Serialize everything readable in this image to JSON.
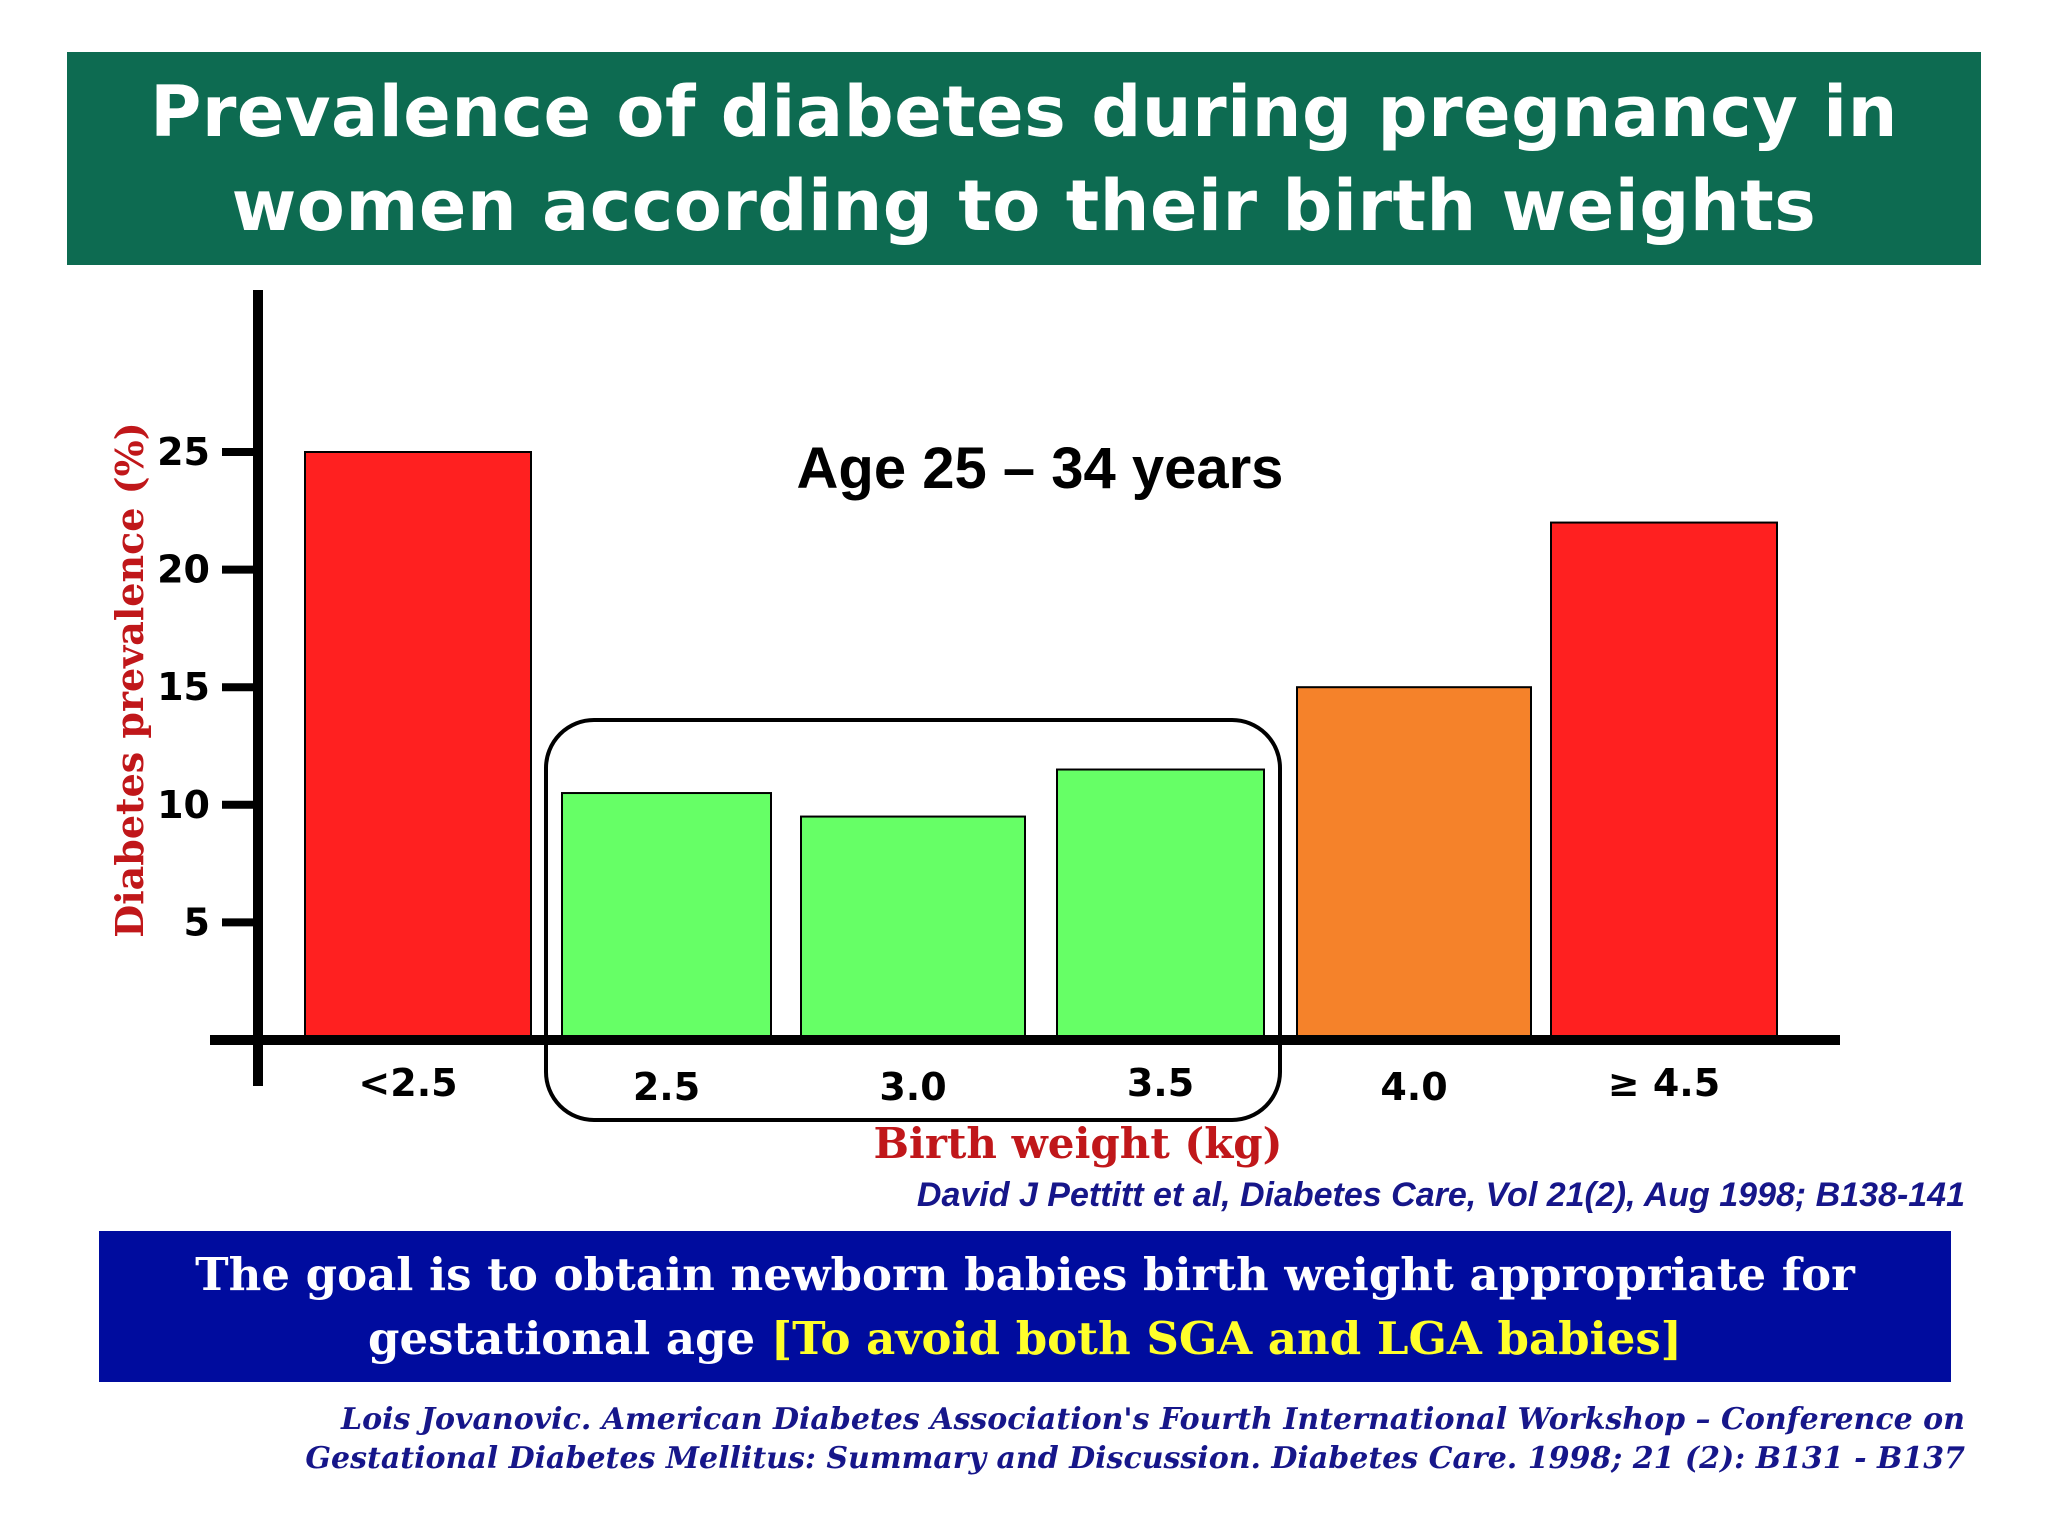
{
  "header": {
    "title_line1": "Prevalence of diabetes during pregnancy in",
    "title_line2": "women according to their birth weights",
    "background": "#0d6b51"
  },
  "chart_data": {
    "type": "bar",
    "subtitle": "Age 25 – 34 years",
    "xlabel": "Birth weight (kg)",
    "ylabel": "Diabetes prevalence (%)",
    "categories": [
      "<2.5",
      "2.5",
      "3.0",
      "3.5",
      "4.0",
      "≥ 4.5"
    ],
    "values": [
      25,
      10.5,
      9.5,
      11.5,
      15,
      22
    ],
    "colors": [
      "#ff2020",
      "#66ff66",
      "#66ff66",
      "#66ff66",
      "#f5822a",
      "#ff2020"
    ],
    "yticks": [
      5,
      10,
      15,
      20,
      25
    ],
    "ylim": [
      0,
      25
    ],
    "grid": false,
    "highlight_group": [
      "2.5",
      "3.0",
      "3.5"
    ]
  },
  "citation1": "David J Pettitt et al, Diabetes Care, Vol 21(2), Aug 1998; B138-141",
  "goal": {
    "line1": "The goal is to obtain newborn babies birth weight appropriate for",
    "line2_prefix": "gestational age ",
    "line2_highlight": "[To avoid both SGA and LGA babies]",
    "background": "#000c9e",
    "highlight_color": "#ffff2a"
  },
  "citation2": {
    "line1": "Lois Jovanovic. American Diabetes Association's Fourth International Workshop – Conference on",
    "line2": "Gestational Diabetes Mellitus: Summary and Discussion. Diabetes Care. 1998; 21 (2): B131 - B137"
  }
}
